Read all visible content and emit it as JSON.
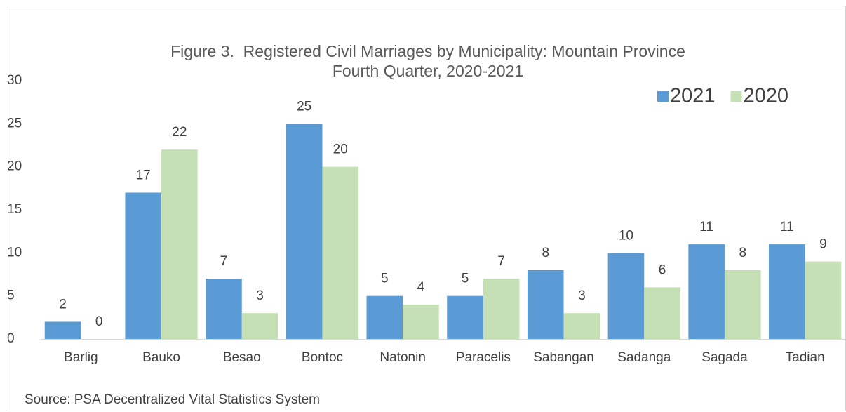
{
  "chart_data": {
    "type": "bar",
    "title": "Figure 3.  Registered Civil Marriages by Municipality: Mountain Province",
    "subtitle": "Fourth Quarter, 2020-2021",
    "categories": [
      "Barlig",
      "Bauko",
      "Besao",
      "Bontoc",
      "Natonin",
      "Paracelis",
      "Sabangan",
      "Sadanga",
      "Sagada",
      "Tadian"
    ],
    "series": [
      {
        "name": "2021",
        "color": "#5b9bd5",
        "values": [
          2,
          17,
          7,
          25,
          5,
          5,
          8,
          10,
          11,
          11
        ]
      },
      {
        "name": "2020",
        "color": "#c5e0b4",
        "values": [
          0,
          22,
          3,
          20,
          4,
          7,
          3,
          6,
          8,
          9
        ]
      }
    ],
    "ylim": [
      0,
      30
    ],
    "yticks": [
      0,
      5,
      10,
      15,
      20,
      25,
      30
    ],
    "grid": false,
    "legend": "upper right",
    "source": "Source: PSA Decentralized Vital Statistics System"
  }
}
